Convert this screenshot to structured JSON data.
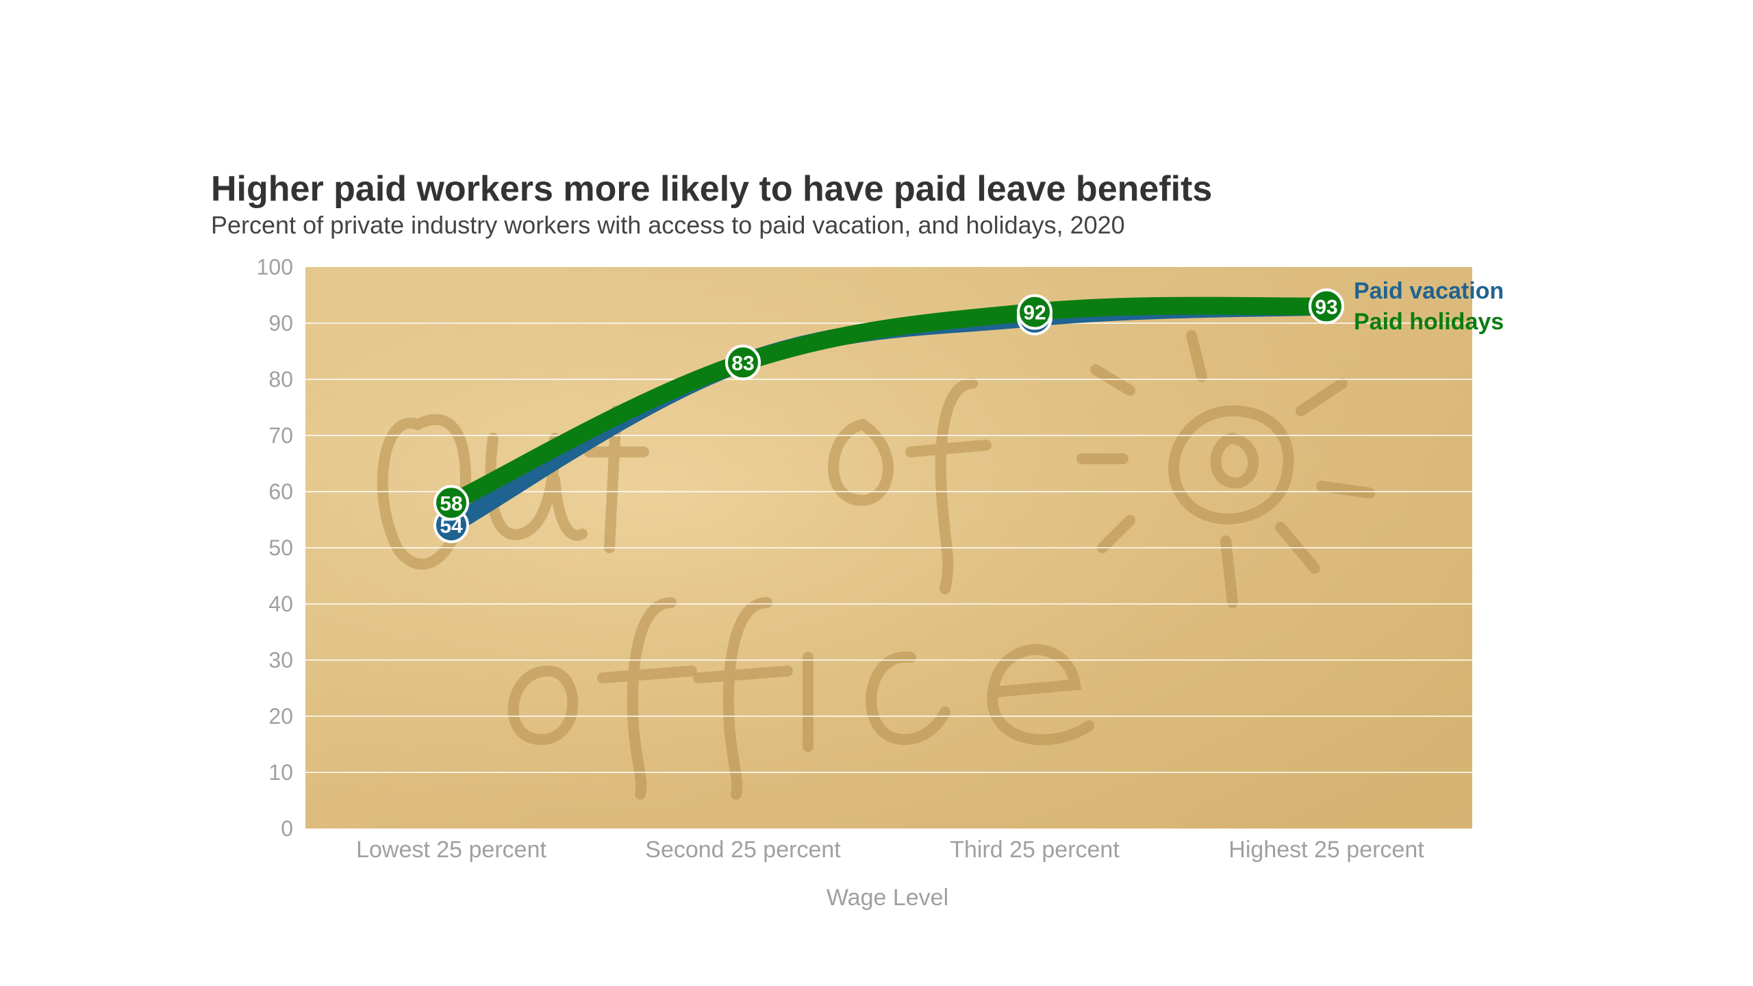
{
  "chart_data": {
    "type": "line",
    "title": "Higher paid workers more likely to have paid leave benefits",
    "subtitle": "Percent of private industry workers with access to paid vacation, and holidays, 2020",
    "xlabel": "Wage Level",
    "ylabel": "",
    "categories": [
      "Lowest 25 percent",
      "Second 25 percent",
      "Third 25 percent",
      "Highest 25 percent"
    ],
    "ylim": [
      0,
      100
    ],
    "yticks": [
      "0",
      "10",
      "20",
      "30",
      "40",
      "50",
      "60",
      "70",
      "80",
      "90",
      "100"
    ],
    "grid": true,
    "legend_placement": "right, at line ends",
    "background_image": "sand with 'Out of office' written in it and a drawn sun",
    "series": [
      {
        "name": "Paid vacation",
        "values": [
          54,
          83,
          91,
          93
        ],
        "labels": [
          "54",
          "",
          "",
          ""
        ],
        "color": "#1f6391"
      },
      {
        "name": "Paid holidays",
        "values": [
          58,
          83,
          92,
          93
        ],
        "labels": [
          "58",
          "83",
          "92",
          "93"
        ],
        "color": "#0a7d12"
      }
    ]
  },
  "colors": {
    "text": "#333333",
    "axis_text": "#a0a0a0",
    "sand": "#e7c98c"
  }
}
